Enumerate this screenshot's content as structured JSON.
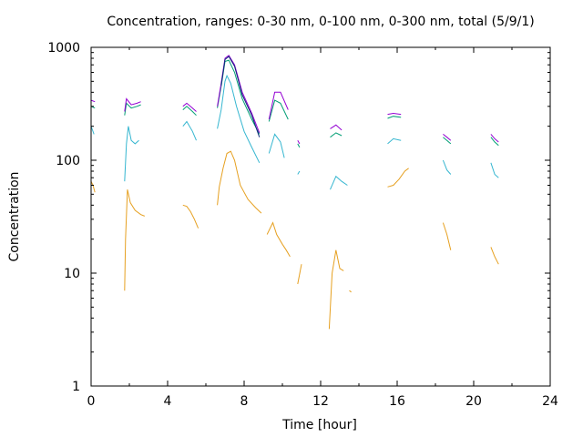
{
  "chart_data": {
    "type": "line",
    "title": "Concentration, ranges: 0-30 nm, 0-100 nm, 0-300 nm, total (5/9/1)",
    "xlabel": "Time [hour]",
    "ylabel": "Concentration",
    "xlim": [
      0,
      24
    ],
    "ylim": [
      1,
      1000
    ],
    "yscale": "log",
    "grid": false,
    "legend": "none",
    "x_ticks": [
      "0",
      "4",
      "8",
      "12",
      "16",
      "20",
      "24"
    ],
    "x_tick_values": [
      0,
      4,
      8,
      12,
      16,
      20,
      24
    ],
    "y_ticks": [
      "1",
      "10",
      "100",
      "1000"
    ],
    "y_tick_values": [
      1,
      10,
      100,
      1000
    ],
    "series": [
      {
        "color": "#e6a020",
        "segments": [
          [
            [
              0.0,
              65
            ],
            [
              0.1,
              60
            ],
            [
              0.2,
              52
            ]
          ],
          [
            [
              1.75,
              7
            ],
            [
              1.8,
              20
            ],
            [
              1.9,
              55
            ],
            [
              2.05,
              42
            ],
            [
              2.3,
              36
            ],
            [
              2.6,
              33
            ],
            [
              2.8,
              32
            ]
          ],
          [
            [
              4.8,
              40
            ],
            [
              5.0,
              39
            ],
            [
              5.2,
              35
            ],
            [
              5.4,
              30
            ],
            [
              5.6,
              25
            ]
          ],
          [
            [
              6.6,
              40
            ],
            [
              6.7,
              58
            ],
            [
              6.9,
              85
            ],
            [
              7.1,
              115
            ],
            [
              7.3,
              120
            ],
            [
              7.5,
              100
            ],
            [
              7.8,
              60
            ],
            [
              8.2,
              45
            ],
            [
              8.6,
              38
            ],
            [
              8.9,
              34
            ]
          ],
          [
            [
              9.2,
              22
            ],
            [
              9.5,
              28
            ],
            [
              9.7,
              22
            ],
            [
              10.0,
              18
            ],
            [
              10.2,
              16
            ],
            [
              10.4,
              14
            ]
          ],
          [
            [
              10.8,
              8
            ],
            [
              11.0,
              12
            ]
          ],
          [
            [
              12.45,
              3.2
            ],
            [
              12.6,
              10
            ],
            [
              12.8,
              16
            ],
            [
              13.0,
              11
            ],
            [
              13.2,
              10.5
            ]
          ],
          [
            [
              13.5,
              7
            ],
            [
              13.6,
              6.8
            ]
          ],
          [
            [
              15.5,
              58
            ],
            [
              15.8,
              60
            ],
            [
              16.1,
              68
            ],
            [
              16.4,
              80
            ],
            [
              16.6,
              85
            ]
          ],
          [
            [
              18.4,
              28
            ],
            [
              18.6,
              22
            ],
            [
              18.8,
              16
            ]
          ],
          [
            [
              20.9,
              17
            ],
            [
              21.1,
              14
            ],
            [
              21.3,
              12
            ]
          ]
        ]
      },
      {
        "color": "#35b6d0",
        "segments": [
          [
            [
              0.0,
              200
            ],
            [
              0.15,
              170
            ]
          ],
          [
            [
              1.75,
              65
            ],
            [
              1.85,
              140
            ],
            [
              1.95,
              200
            ],
            [
              2.1,
              150
            ],
            [
              2.3,
              140
            ],
            [
              2.5,
              150
            ]
          ],
          [
            [
              4.8,
              200
            ],
            [
              5.0,
              220
            ],
            [
              5.3,
              180
            ],
            [
              5.5,
              150
            ]
          ],
          [
            [
              6.6,
              190
            ],
            [
              6.8,
              280
            ],
            [
              7.0,
              500
            ],
            [
              7.1,
              560
            ],
            [
              7.3,
              480
            ],
            [
              7.6,
              300
            ],
            [
              8.0,
              180
            ],
            [
              8.4,
              130
            ],
            [
              8.8,
              95
            ]
          ],
          [
            [
              9.3,
              115
            ],
            [
              9.6,
              170
            ],
            [
              9.9,
              145
            ],
            [
              10.1,
              105
            ]
          ],
          [
            [
              10.8,
              75
            ],
            [
              10.9,
              80
            ]
          ],
          [
            [
              12.5,
              55
            ],
            [
              12.8,
              72
            ],
            [
              13.1,
              65
            ],
            [
              13.4,
              60
            ]
          ],
          [
            [
              15.5,
              140
            ],
            [
              15.8,
              155
            ],
            [
              16.2,
              150
            ]
          ],
          [
            [
              18.4,
              100
            ],
            [
              18.6,
              82
            ],
            [
              18.8,
              75
            ]
          ],
          [
            [
              20.9,
              95
            ],
            [
              21.1,
              75
            ],
            [
              21.3,
              70
            ]
          ]
        ]
      },
      {
        "color": "#009e73",
        "segments": [
          [
            [
              0.0,
              300
            ],
            [
              0.2,
              290
            ]
          ],
          [
            [
              1.75,
              250
            ],
            [
              1.85,
              320
            ],
            [
              2.1,
              290
            ],
            [
              2.4,
              300
            ],
            [
              2.6,
              310
            ]
          ],
          [
            [
              4.8,
              280
            ],
            [
              5.0,
              300
            ],
            [
              5.3,
              270
            ],
            [
              5.5,
              250
            ]
          ],
          [
            [
              6.6,
              290
            ],
            [
              6.8,
              450
            ],
            [
              7.0,
              750
            ],
            [
              7.2,
              770
            ],
            [
              7.5,
              600
            ],
            [
              7.9,
              350
            ],
            [
              8.4,
              230
            ],
            [
              8.8,
              170
            ]
          ],
          [
            [
              9.3,
              220
            ],
            [
              9.6,
              340
            ],
            [
              9.9,
              320
            ],
            [
              10.3,
              230
            ]
          ],
          [
            [
              10.8,
              140
            ],
            [
              10.9,
              130
            ]
          ],
          [
            [
              12.5,
              160
            ],
            [
              12.8,
              175
            ],
            [
              13.1,
              165
            ]
          ],
          [
            [
              15.5,
              235
            ],
            [
              15.8,
              245
            ],
            [
              16.2,
              240
            ]
          ],
          [
            [
              18.4,
              160
            ],
            [
              18.6,
              150
            ],
            [
              18.8,
              140
            ]
          ],
          [
            [
              20.9,
              160
            ],
            [
              21.1,
              145
            ],
            [
              21.3,
              135
            ]
          ]
        ]
      },
      {
        "color": "#9400d3",
        "segments": [
          [
            [
              0.0,
              340
            ],
            [
              0.2,
              330
            ]
          ],
          [
            [
              1.75,
              270
            ],
            [
              1.85,
              350
            ],
            [
              2.1,
              310
            ],
            [
              2.4,
              320
            ],
            [
              2.6,
              330
            ]
          ],
          [
            [
              4.8,
              300
            ],
            [
              5.0,
              320
            ],
            [
              5.3,
              290
            ],
            [
              5.5,
              270
            ]
          ],
          [
            [
              6.6,
              300
            ],
            [
              6.8,
              480
            ],
            [
              7.0,
              800
            ],
            [
              7.2,
              850
            ],
            [
              7.5,
              700
            ],
            [
              7.9,
              400
            ],
            [
              8.4,
              260
            ],
            [
              8.8,
              175
            ]
          ],
          [
            [
              9.3,
              230
            ],
            [
              9.6,
              400
            ],
            [
              9.9,
              400
            ],
            [
              10.3,
              280
            ]
          ],
          [
            [
              10.8,
              150
            ],
            [
              10.9,
              140
            ]
          ],
          [
            [
              12.5,
              190
            ],
            [
              12.8,
              205
            ],
            [
              13.1,
              185
            ]
          ],
          [
            [
              15.5,
              255
            ],
            [
              15.8,
              260
            ],
            [
              16.2,
              255
            ]
          ],
          [
            [
              18.4,
              170
            ],
            [
              18.6,
              160
            ],
            [
              18.8,
              150
            ]
          ],
          [
            [
              20.9,
              170
            ],
            [
              21.1,
              155
            ],
            [
              21.3,
              145
            ]
          ]
        ]
      },
      {
        "color": "#0c2a7a",
        "segments": [
          [
            [
              6.8,
              460
            ],
            [
              7.0,
              780
            ],
            [
              7.2,
              830
            ],
            [
              7.5,
              680
            ],
            [
              7.9,
              380
            ],
            [
              8.4,
              250
            ],
            [
              8.8,
              160
            ]
          ]
        ]
      }
    ]
  }
}
